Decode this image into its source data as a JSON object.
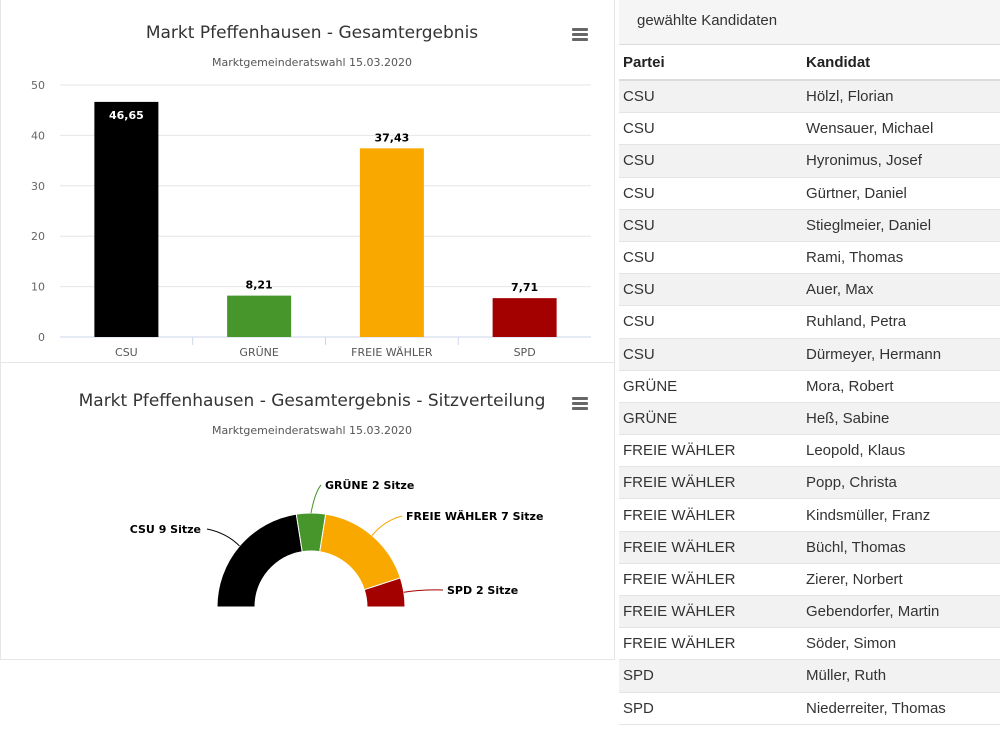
{
  "chart_data": [
    {
      "type": "bar",
      "title": "Markt Pfeffenhausen - Gesamtergebnis",
      "subtitle": "Marktgemeinderatswahl 15.03.2020",
      "categories": [
        "CSU",
        "GRÜNE",
        "FREIE WÄHLER",
        "SPD"
      ],
      "values": [
        46.65,
        8.21,
        37.43,
        7.71
      ],
      "value_labels": [
        "46,65",
        "8,21",
        "37,43",
        "7,71"
      ],
      "colors": [
        "#000000",
        "#46962b",
        "#f9a800",
        "#a30000"
      ],
      "yticks": [
        0,
        10,
        20,
        30,
        40,
        50
      ],
      "ylim": [
        0,
        50
      ],
      "xlabel": "",
      "ylabel": ""
    },
    {
      "type": "pie",
      "variant": "semicircle",
      "title": "Markt Pfeffenhausen - Gesamtergebnis - Sitzverteilung",
      "subtitle": "Marktgemeinderatswahl 15.03.2020",
      "categories": [
        "CSU",
        "GRÜNE",
        "FREIE WÄHLER",
        "SPD"
      ],
      "values": [
        9,
        2,
        7,
        2
      ],
      "labels": [
        "CSU 9 Sitze",
        "GRÜNE 2 Sitze",
        "FREIE WÄHLER 7 Sitze",
        "SPD 2 Sitze"
      ],
      "colors": [
        "#000000",
        "#46962b",
        "#f9a800",
        "#a30000"
      ]
    }
  ],
  "table": {
    "caption": "gewählte Kandidaten",
    "headers": [
      "Partei",
      "Kandidat"
    ],
    "rows": [
      [
        "CSU",
        "Hölzl, Florian"
      ],
      [
        "CSU",
        "Wensauer, Michael"
      ],
      [
        "CSU",
        "Hyronimus, Josef"
      ],
      [
        "CSU",
        "Gürtner, Daniel"
      ],
      [
        "CSU",
        "Stieglmeier, Daniel"
      ],
      [
        "CSU",
        "Rami, Thomas"
      ],
      [
        "CSU",
        "Auer, Max"
      ],
      [
        "CSU",
        "Ruhland, Petra"
      ],
      [
        "CSU",
        "Dürmeyer, Hermann"
      ],
      [
        "GRÜNE",
        "Mora, Robert"
      ],
      [
        "GRÜNE",
        "Heß, Sabine"
      ],
      [
        "FREIE WÄHLER",
        "Leopold, Klaus"
      ],
      [
        "FREIE WÄHLER",
        "Popp, Christa"
      ],
      [
        "FREIE WÄHLER",
        "Kindsmüller, Franz"
      ],
      [
        "FREIE WÄHLER",
        "Büchl, Thomas"
      ],
      [
        "FREIE WÄHLER",
        "Zierer, Norbert"
      ],
      [
        "FREIE WÄHLER",
        "Gebendorfer, Martin"
      ],
      [
        "FREIE WÄHLER",
        "Söder, Simon"
      ],
      [
        "SPD",
        "Müller, Ruth"
      ],
      [
        "SPD",
        "Niederreiter, Thomas"
      ]
    ]
  }
}
